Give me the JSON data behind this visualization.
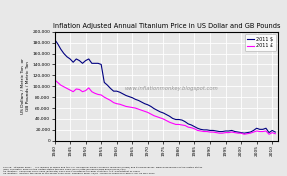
{
  "title": "Inflation Adjusted Annual Titanium Price in US Dollar and GB Pounds",
  "ylabel": "US Dollars / Metric Ton  or\nGB Pounds / Metric Ton",
  "watermark": "www.inflationmonkey.blogspot.com",
  "legend_usd": "2011 $",
  "legend_gbp": "2011 £",
  "color_usd": "#000080",
  "color_gbp": "#FF00FF",
  "source_text": "Source:  Titanium Price :    U.S. Bureau of Mines and the U.S. Geological Survey Minerals Yearbook (MYBS) and its predecessor, Mineral Resources of the United States\n(MR), and Retail Prices in the United States through 1999 (RPUS) http://minerals.usgs.gov/ds/2005/140/\nUS Inflation:  Consumer Price Index (Estimate) 1800-2011: Handbook of Labor Statistics, U.S. Department of Labor\nUK Inflation:  Inflation the Value of the Pound 1750-2011: Research Paper 12/31 , House of Commons Library, UK, 29 May 2012",
  "xlim": [
    1940,
    2012
  ],
  "ylim": [
    0,
    200000
  ],
  "yticks": [
    0,
    20000,
    40000,
    60000,
    80000,
    100000,
    120000,
    140000,
    160000,
    180000,
    200000
  ],
  "xticks": [
    1940,
    1945,
    1950,
    1955,
    1960,
    1965,
    1970,
    1975,
    1980,
    1985,
    1990,
    1995,
    2000,
    2005,
    2010
  ],
  "years_usd": [
    1940,
    1941,
    1942,
    1943,
    1944,
    1945,
    1946,
    1947,
    1948,
    1949,
    1950,
    1951,
    1952,
    1953,
    1954,
    1955,
    1956,
    1957,
    1958,
    1959,
    1960,
    1961,
    1962,
    1963,
    1964,
    1965,
    1966,
    1967,
    1968,
    1969,
    1970,
    1971,
    1972,
    1973,
    1974,
    1975,
    1976,
    1977,
    1978,
    1979,
    1980,
    1981,
    1982,
    1983,
    1984,
    1985,
    1986,
    1987,
    1988,
    1989,
    1990,
    1991,
    1992,
    1993,
    1994,
    1995,
    1996,
    1997,
    1998,
    1999,
    2000,
    2001,
    2002,
    2003,
    2004,
    2005,
    2006,
    2007,
    2008,
    2009,
    2010,
    2011
  ],
  "values_usd": [
    186000,
    178000,
    168000,
    160000,
    154000,
    150000,
    144000,
    150000,
    147000,
    142000,
    147000,
    150000,
    142000,
    142000,
    142000,
    140000,
    107000,
    102000,
    96000,
    91000,
    91000,
    89000,
    86000,
    83000,
    81000,
    79000,
    76000,
    74000,
    71000,
    68000,
    66000,
    63000,
    59000,
    56000,
    53000,
    51000,
    48000,
    45000,
    41000,
    39000,
    39000,
    38000,
    35000,
    31000,
    29000,
    26000,
    23000,
    21000,
    20000,
    20000,
    19000,
    19000,
    18000,
    17000,
    17000,
    18000,
    18000,
    19000,
    17000,
    16000,
    15000,
    14000,
    15000,
    16000,
    19000,
    23000,
    21000,
    21000,
    23000,
    15000,
    19000,
    16000
  ],
  "years_gbp": [
    1940,
    1941,
    1942,
    1943,
    1944,
    1945,
    1946,
    1947,
    1948,
    1949,
    1950,
    1951,
    1952,
    1953,
    1954,
    1955,
    1956,
    1957,
    1958,
    1959,
    1960,
    1961,
    1962,
    1963,
    1964,
    1965,
    1966,
    1967,
    1968,
    1969,
    1970,
    1971,
    1972,
    1973,
    1974,
    1975,
    1976,
    1977,
    1978,
    1979,
    1980,
    1981,
    1982,
    1983,
    1984,
    1985,
    1986,
    1987,
    1988,
    1989,
    1990,
    1991,
    1992,
    1993,
    1994,
    1995,
    1996,
    1997,
    1998,
    1999,
    2000,
    2001,
    2002,
    2003,
    2004,
    2005,
    2006,
    2007,
    2008,
    2009,
    2010,
    2011
  ],
  "values_gbp": [
    112000,
    107000,
    102000,
    99000,
    96000,
    93000,
    90000,
    95000,
    94000,
    90000,
    92000,
    97000,
    90000,
    87000,
    85000,
    84000,
    80000,
    77000,
    74000,
    70000,
    68000,
    67000,
    65000,
    63000,
    62000,
    61000,
    60000,
    58000,
    56000,
    54000,
    52000,
    49000,
    46000,
    44000,
    42000,
    40000,
    37000,
    34000,
    32000,
    30000,
    30000,
    29000,
    28000,
    25000,
    24000,
    22000,
    19000,
    18000,
    17000,
    17000,
    16000,
    16000,
    15000,
    14000,
    14000,
    15000,
    15000,
    16000,
    15000,
    14000,
    14000,
    12000,
    13000,
    14000,
    16000,
    18000,
    17000,
    17000,
    18000,
    12000,
    15000,
    13000
  ],
  "background_color": "#e8e8e8",
  "grid_color": "#ffffff",
  "plot_bg_color": "#e8e8e8"
}
